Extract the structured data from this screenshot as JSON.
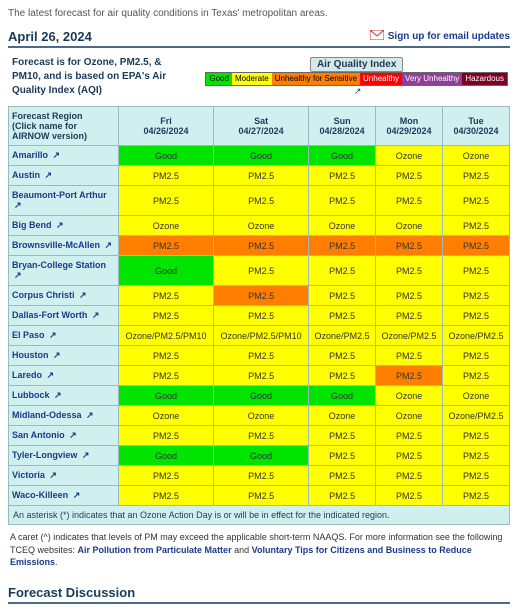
{
  "intro": "The latest forecast for air quality conditions in Texas' metropolitan areas.",
  "date": "April 26, 2024",
  "signup": "Sign up for email updates",
  "header_text": "Forecast is for Ozone, PM2.5, & PM10, and is based on EPA's Air Quality Index (AQI)",
  "aqi": {
    "title": "Air Quality Index",
    "levels": [
      {
        "label": "Good",
        "bg": "#00e400",
        "fg": "#000"
      },
      {
        "label": "Moderate",
        "bg": "#ffff00",
        "fg": "#000"
      },
      {
        "label": "Unhealthy for\nSensitive",
        "bg": "#ff7e00",
        "fg": "#000"
      },
      {
        "label": "Unhealthy",
        "bg": "#ff0000",
        "fg": "#fff"
      },
      {
        "label": "Very\nUnhealthy",
        "bg": "#8f3f97",
        "fg": "#fff"
      },
      {
        "label": "Hazardous",
        "bg": "#7e0023",
        "fg": "#fff"
      }
    ]
  },
  "colors": {
    "good": "#00e400",
    "moderate": "#ffff00",
    "usg": "#ff7e00"
  },
  "table": {
    "region_hdr": "Forecast Region\n(Click name for AIRNOW version)",
    "days": [
      {
        "dow": "Fri",
        "date": "04/26/2024"
      },
      {
        "dow": "Sat",
        "date": "04/27/2024"
      },
      {
        "dow": "Sun",
        "date": "04/28/2024"
      },
      {
        "dow": "Mon",
        "date": "04/29/2024"
      },
      {
        "dow": "Tue",
        "date": "04/30/2024"
      }
    ],
    "rows": [
      {
        "region": "Amarillo",
        "cells": [
          {
            "t": "Good",
            "c": "good"
          },
          {
            "t": "Good",
            "c": "good"
          },
          {
            "t": "Good",
            "c": "good"
          },
          {
            "t": "Ozone",
            "c": "moderate"
          },
          {
            "t": "Ozone",
            "c": "moderate"
          }
        ]
      },
      {
        "region": "Austin",
        "cells": [
          {
            "t": "PM2.5",
            "c": "moderate"
          },
          {
            "t": "PM2.5",
            "c": "moderate"
          },
          {
            "t": "PM2.5",
            "c": "moderate"
          },
          {
            "t": "PM2.5",
            "c": "moderate"
          },
          {
            "t": "PM2.5",
            "c": "moderate"
          }
        ]
      },
      {
        "region": "Beaumont-Port Arthur",
        "cells": [
          {
            "t": "PM2.5",
            "c": "moderate"
          },
          {
            "t": "PM2.5",
            "c": "moderate"
          },
          {
            "t": "PM2.5",
            "c": "moderate"
          },
          {
            "t": "PM2.5",
            "c": "moderate"
          },
          {
            "t": "PM2.5",
            "c": "moderate"
          }
        ]
      },
      {
        "region": "Big Bend",
        "cells": [
          {
            "t": "Ozone",
            "c": "moderate"
          },
          {
            "t": "Ozone",
            "c": "moderate"
          },
          {
            "t": "Ozone",
            "c": "moderate"
          },
          {
            "t": "Ozone",
            "c": "moderate"
          },
          {
            "t": "PM2.5",
            "c": "moderate"
          }
        ]
      },
      {
        "region": "Brownsville-McAllen",
        "cells": [
          {
            "t": "PM2.5",
            "c": "usg"
          },
          {
            "t": "PM2.5",
            "c": "usg"
          },
          {
            "t": "PM2.5",
            "c": "usg"
          },
          {
            "t": "PM2.5",
            "c": "usg"
          },
          {
            "t": "PM2.5",
            "c": "usg"
          }
        ]
      },
      {
        "region": "Bryan-College Station",
        "cells": [
          {
            "t": "Good",
            "c": "good"
          },
          {
            "t": "PM2.5",
            "c": "moderate"
          },
          {
            "t": "PM2.5",
            "c": "moderate"
          },
          {
            "t": "PM2.5",
            "c": "moderate"
          },
          {
            "t": "PM2.5",
            "c": "moderate"
          }
        ]
      },
      {
        "region": "Corpus Christi",
        "cells": [
          {
            "t": "PM2.5",
            "c": "moderate"
          },
          {
            "t": "PM2.5",
            "c": "usg"
          },
          {
            "t": "PM2.5",
            "c": "moderate"
          },
          {
            "t": "PM2.5",
            "c": "moderate"
          },
          {
            "t": "PM2.5",
            "c": "moderate"
          }
        ]
      },
      {
        "region": "Dallas-Fort Worth",
        "cells": [
          {
            "t": "PM2.5",
            "c": "moderate"
          },
          {
            "t": "PM2.5",
            "c": "moderate"
          },
          {
            "t": "PM2.5",
            "c": "moderate"
          },
          {
            "t": "PM2.5",
            "c": "moderate"
          },
          {
            "t": "PM2.5",
            "c": "moderate"
          }
        ]
      },
      {
        "region": "El Paso",
        "cells": [
          {
            "t": "Ozone/PM2.5/PM10",
            "c": "moderate"
          },
          {
            "t": "Ozone/PM2.5/PM10",
            "c": "moderate"
          },
          {
            "t": "Ozone/PM2.5",
            "c": "moderate"
          },
          {
            "t": "Ozone/PM2.5",
            "c": "moderate"
          },
          {
            "t": "Ozone/PM2.5",
            "c": "moderate"
          }
        ]
      },
      {
        "region": "Houston",
        "cells": [
          {
            "t": "PM2.5",
            "c": "moderate"
          },
          {
            "t": "PM2.5",
            "c": "moderate"
          },
          {
            "t": "PM2.5",
            "c": "moderate"
          },
          {
            "t": "PM2.5",
            "c": "moderate"
          },
          {
            "t": "PM2.5",
            "c": "moderate"
          }
        ]
      },
      {
        "region": "Laredo",
        "cells": [
          {
            "t": "PM2.5",
            "c": "moderate"
          },
          {
            "t": "PM2.5",
            "c": "moderate"
          },
          {
            "t": "PM2.5",
            "c": "moderate"
          },
          {
            "t": "PM2.5",
            "c": "usg"
          },
          {
            "t": "PM2.5",
            "c": "moderate"
          }
        ]
      },
      {
        "region": "Lubbock",
        "cells": [
          {
            "t": "Good",
            "c": "good"
          },
          {
            "t": "Good",
            "c": "good"
          },
          {
            "t": "Good",
            "c": "good"
          },
          {
            "t": "Ozone",
            "c": "moderate"
          },
          {
            "t": "Ozone",
            "c": "moderate"
          }
        ]
      },
      {
        "region": "Midland-Odessa",
        "cells": [
          {
            "t": "Ozone",
            "c": "moderate"
          },
          {
            "t": "Ozone",
            "c": "moderate"
          },
          {
            "t": "Ozone",
            "c": "moderate"
          },
          {
            "t": "Ozone",
            "c": "moderate"
          },
          {
            "t": "Ozone/PM2.5",
            "c": "moderate"
          }
        ]
      },
      {
        "region": "San Antonio",
        "cells": [
          {
            "t": "PM2.5",
            "c": "moderate"
          },
          {
            "t": "PM2.5",
            "c": "moderate"
          },
          {
            "t": "PM2.5",
            "c": "moderate"
          },
          {
            "t": "PM2.5",
            "c": "moderate"
          },
          {
            "t": "PM2.5",
            "c": "moderate"
          }
        ]
      },
      {
        "region": "Tyler-Longview",
        "cells": [
          {
            "t": "Good",
            "c": "good"
          },
          {
            "t": "Good",
            "c": "good"
          },
          {
            "t": "PM2.5",
            "c": "moderate"
          },
          {
            "t": "PM2.5",
            "c": "moderate"
          },
          {
            "t": "PM2.5",
            "c": "moderate"
          }
        ]
      },
      {
        "region": "Victoria",
        "cells": [
          {
            "t": "PM2.5",
            "c": "moderate"
          },
          {
            "t": "PM2.5",
            "c": "moderate"
          },
          {
            "t": "PM2.5",
            "c": "moderate"
          },
          {
            "t": "PM2.5",
            "c": "moderate"
          },
          {
            "t": "PM2.5",
            "c": "moderate"
          }
        ]
      },
      {
        "region": "Waco-Killeen",
        "cells": [
          {
            "t": "PM2.5",
            "c": "moderate"
          },
          {
            "t": "PM2.5",
            "c": "moderate"
          },
          {
            "t": "PM2.5",
            "c": "moderate"
          },
          {
            "t": "PM2.5",
            "c": "moderate"
          },
          {
            "t": "PM2.5",
            "c": "moderate"
          }
        ]
      }
    ]
  },
  "asterisk_note": "An asterisk (*) indicates that an Ozone Action Day is or will be in effect for the indicated region.",
  "pm_note_pre": "A caret (^) indicates that levels of PM may exceed the applicable short-term NAAQS. For more information see the following TCEQ websites:",
  "pm_link1": "Air Pollution from Particulate Matter",
  "pm_and": " and ",
  "pm_link2": "Voluntary Tips for Citizens and Business to Reduce Emissions",
  "discussion_hdr": "Forecast Discussion"
}
